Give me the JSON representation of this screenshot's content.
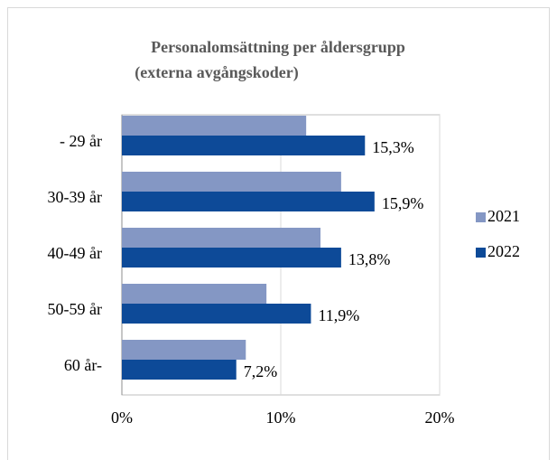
{
  "chart_data": {
    "type": "barh",
    "title": [
      "Personalomsättning per åldersgrupp",
      "(externa avgångskoder)"
    ],
    "categories": [
      "- 29 år",
      "30-39 år",
      "40-49 år",
      "50-59 år",
      "60 år-"
    ],
    "series": [
      {
        "name": "2021",
        "color": "#8497c4",
        "values": [
          11.6,
          13.8,
          12.5,
          9.1,
          7.8
        ]
      },
      {
        "name": "2022",
        "color": "#0d4a98",
        "values": [
          15.3,
          15.9,
          13.8,
          11.9,
          7.2
        ],
        "value_labels": [
          "15,3%",
          "15,9%",
          "13,8%",
          "11,9%",
          "7,2%"
        ]
      }
    ],
    "xlim": [
      0,
      20
    ],
    "xticks": [
      {
        "value": 0,
        "label": "0%"
      },
      {
        "value": 10,
        "label": "10%"
      },
      {
        "value": 20,
        "label": "20%"
      }
    ],
    "grid": true,
    "legend": "right"
  }
}
